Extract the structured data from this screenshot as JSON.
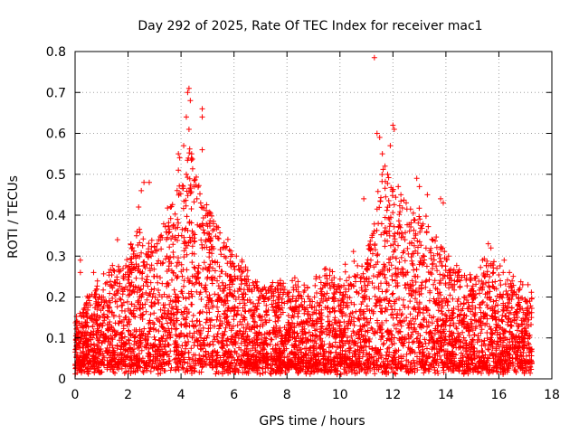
{
  "chart_data": {
    "type": "scatter",
    "title": "Day 292 of 2025, Rate Of TEC Index for receiver mac1",
    "xlabel": "GPS time / hours",
    "ylabel": "ROTI / TECUs",
    "xlim": [
      0,
      18
    ],
    "ylim": [
      0,
      0.8
    ],
    "xticks": [
      "0",
      "2",
      "4",
      "6",
      "8",
      "10",
      "12",
      "14",
      "16",
      "18"
    ],
    "yticks": [
      "0",
      "0.1",
      "0.2",
      "0.3",
      "0.4",
      "0.5",
      "0.6",
      "0.7",
      "0.8"
    ],
    "grid": true,
    "marker": "+",
    "color": "#ff0000",
    "envelope": {
      "description_hint": "approximate upper envelope of point cloud",
      "x": [
        0.0,
        0.3,
        0.6,
        1.0,
        1.5,
        2.0,
        2.4,
        2.7,
        3.0,
        3.4,
        3.8,
        4.2,
        4.4,
        4.8,
        5.2,
        5.6,
        6.0,
        6.4,
        7.0,
        7.5,
        8.0,
        8.5,
        9.0,
        9.5,
        10.0,
        10.5,
        11.0,
        11.3,
        11.6,
        12.0,
        12.4,
        12.8,
        13.2,
        13.6,
        14.0,
        14.4,
        14.8,
        15.2,
        15.6,
        16.0,
        16.4,
        16.8,
        17.2
      ],
      "y": [
        0.12,
        0.15,
        0.2,
        0.22,
        0.25,
        0.28,
        0.35,
        0.3,
        0.32,
        0.38,
        0.42,
        0.5,
        0.55,
        0.42,
        0.38,
        0.33,
        0.3,
        0.25,
        0.2,
        0.22,
        0.2,
        0.22,
        0.2,
        0.25,
        0.22,
        0.28,
        0.25,
        0.4,
        0.5,
        0.45,
        0.42,
        0.4,
        0.38,
        0.33,
        0.28,
        0.25,
        0.22,
        0.25,
        0.28,
        0.25,
        0.22,
        0.2,
        0.18
      ]
    },
    "peaks": [
      {
        "x": 0.2,
        "y": 0.29
      },
      {
        "x": 0.2,
        "y": 0.26
      },
      {
        "x": 0.7,
        "y": 0.26
      },
      {
        "x": 1.6,
        "y": 0.34
      },
      {
        "x": 2.4,
        "y": 0.42
      },
      {
        "x": 2.5,
        "y": 0.46
      },
      {
        "x": 2.6,
        "y": 0.48
      },
      {
        "x": 2.8,
        "y": 0.48
      },
      {
        "x": 3.1,
        "y": 0.33
      },
      {
        "x": 3.6,
        "y": 0.42
      },
      {
        "x": 3.9,
        "y": 0.55
      },
      {
        "x": 3.9,
        "y": 0.51
      },
      {
        "x": 3.95,
        "y": 0.54
      },
      {
        "x": 4.1,
        "y": 0.57
      },
      {
        "x": 4.2,
        "y": 0.64
      },
      {
        "x": 4.25,
        "y": 0.7
      },
      {
        "x": 4.3,
        "y": 0.71
      },
      {
        "x": 4.3,
        "y": 0.61
      },
      {
        "x": 4.35,
        "y": 0.68
      },
      {
        "x": 4.4,
        "y": 0.55
      },
      {
        "x": 4.2,
        "y": 0.5
      },
      {
        "x": 4.5,
        "y": 0.47
      },
      {
        "x": 4.6,
        "y": 0.44
      },
      {
        "x": 4.8,
        "y": 0.66
      },
      {
        "x": 4.8,
        "y": 0.64
      },
      {
        "x": 4.8,
        "y": 0.56
      },
      {
        "x": 5.0,
        "y": 0.4
      },
      {
        "x": 5.4,
        "y": 0.37
      },
      {
        "x": 6.3,
        "y": 0.29
      },
      {
        "x": 7.1,
        "y": 0.22
      },
      {
        "x": 8.2,
        "y": 0.24
      },
      {
        "x": 9.1,
        "y": 0.25
      },
      {
        "x": 10.2,
        "y": 0.28
      },
      {
        "x": 10.9,
        "y": 0.44
      },
      {
        "x": 11.3,
        "y": 0.785
      },
      {
        "x": 11.4,
        "y": 0.6
      },
      {
        "x": 11.5,
        "y": 0.59
      },
      {
        "x": 11.6,
        "y": 0.55
      },
      {
        "x": 11.7,
        "y": 0.52
      },
      {
        "x": 11.8,
        "y": 0.5
      },
      {
        "x": 11.9,
        "y": 0.57
      },
      {
        "x": 12.0,
        "y": 0.62
      },
      {
        "x": 12.05,
        "y": 0.61
      },
      {
        "x": 12.2,
        "y": 0.47
      },
      {
        "x": 12.3,
        "y": 0.45
      },
      {
        "x": 12.5,
        "y": 0.43
      },
      {
        "x": 12.9,
        "y": 0.49
      },
      {
        "x": 13.0,
        "y": 0.47
      },
      {
        "x": 13.3,
        "y": 0.45
      },
      {
        "x": 13.8,
        "y": 0.44
      },
      {
        "x": 13.9,
        "y": 0.43
      },
      {
        "x": 14.1,
        "y": 0.3
      },
      {
        "x": 15.6,
        "y": 0.33
      },
      {
        "x": 15.7,
        "y": 0.32
      },
      {
        "x": 16.2,
        "y": 0.29
      },
      {
        "x": 16.4,
        "y": 0.26
      },
      {
        "x": 16.9,
        "y": 0.23
      },
      {
        "x": 17.1,
        "y": 0.23
      }
    ]
  }
}
